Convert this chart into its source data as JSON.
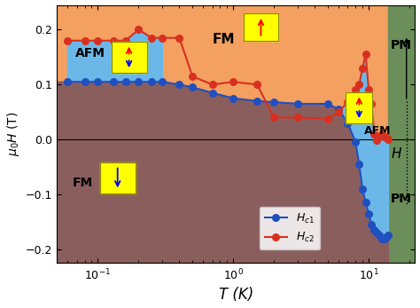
{
  "xlabel": "T (K)",
  "ylabel": "$\\mu_0 H$ (T)",
  "xlim": [
    0.05,
    22
  ],
  "ylim": [
    -0.225,
    0.245
  ],
  "yticks": [
    -0.2,
    -0.1,
    0.0,
    0.1,
    0.2
  ],
  "T_PM_boundary": 14.0,
  "hc1_T": [
    0.06,
    0.08,
    0.1,
    0.13,
    0.16,
    0.2,
    0.25,
    0.3,
    0.4,
    0.5,
    0.7,
    1.0,
    1.5,
    2.0,
    3.0,
    5.0,
    6.0,
    7.0,
    8.0,
    8.5,
    9.0,
    9.5,
    10.0,
    10.5,
    11.0,
    11.5,
    12.0,
    12.5,
    13.0,
    13.5,
    14.0
  ],
  "hc1_H": [
    0.105,
    0.105,
    0.105,
    0.105,
    0.105,
    0.105,
    0.105,
    0.105,
    0.1,
    0.095,
    0.085,
    0.075,
    0.07,
    0.068,
    0.065,
    0.065,
    0.055,
    0.03,
    -0.005,
    -0.045,
    -0.09,
    -0.115,
    -0.135,
    -0.155,
    -0.165,
    -0.17,
    -0.175,
    -0.18,
    -0.18,
    -0.178,
    -0.175
  ],
  "hc2_T": [
    0.06,
    0.08,
    0.1,
    0.13,
    0.16,
    0.2,
    0.25,
    0.3,
    0.4,
    0.5,
    0.7,
    1.0,
    1.5,
    2.0,
    3.0,
    5.0,
    6.0,
    7.0,
    8.0,
    8.5,
    9.0,
    9.5,
    10.0,
    10.5,
    11.0,
    11.5,
    12.0,
    12.5,
    13.0,
    13.5,
    14.0
  ],
  "hc2_H": [
    0.18,
    0.18,
    0.18,
    0.18,
    0.18,
    0.2,
    0.185,
    0.185,
    0.185,
    0.115,
    0.1,
    0.105,
    0.1,
    0.04,
    0.04,
    0.038,
    0.05,
    0.068,
    0.09,
    0.1,
    0.13,
    0.155,
    0.09,
    0.065,
    0.01,
    -0.002,
    0.005,
    0.01,
    0.005,
    0.003,
    0.0
  ],
  "color_orange": "#F4A060",
  "color_brown": "#8B5E5E",
  "color_blue_afm": "#6BB8E8",
  "color_green_pm": "#6B8E5A",
  "color_hc1": "#2050C0",
  "color_hc2": "#D83020"
}
